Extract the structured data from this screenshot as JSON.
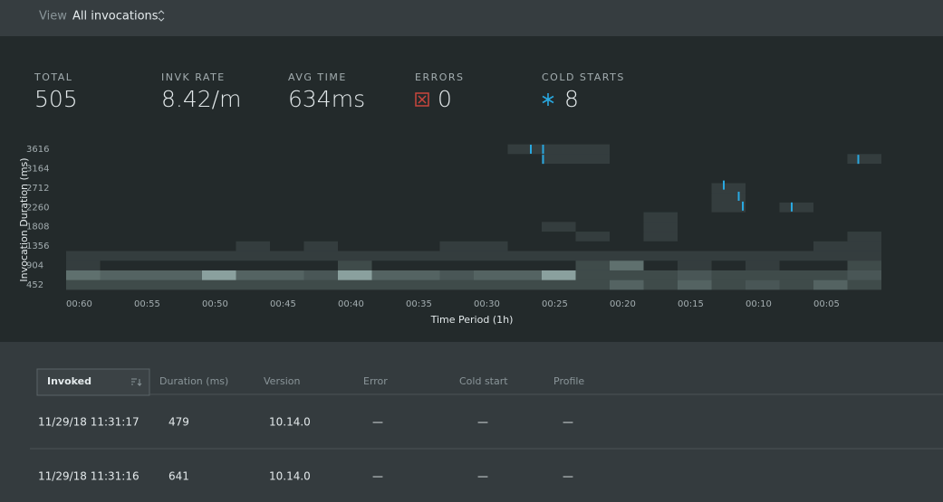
{
  "header": {
    "view_label": "View",
    "view_value": "All invocations"
  },
  "stats": [
    {
      "label": "TOTAL",
      "value": "505"
    },
    {
      "label": "INVK RATE",
      "value": "8.42/m"
    },
    {
      "label": "AVG TIME",
      "value": "634ms"
    },
    {
      "label": "ERRORS",
      "value": "0"
    },
    {
      "label": "COLD STARTS",
      "value": "8"
    }
  ],
  "chart_data": {
    "type": "heatmap",
    "xlabel": "Time Period (1h)",
    "ylabel": "Invocation Duration (ms)",
    "xlim": [
      60,
      0
    ],
    "ylim": [
      339,
      3729
    ],
    "xticks": [
      {
        "value": 60,
        "label": "00:60"
      },
      {
        "value": 55,
        "label": "00:55"
      },
      {
        "value": 50,
        "label": "00:50"
      },
      {
        "value": 45,
        "label": "00:45"
      },
      {
        "value": 40,
        "label": "00:40"
      },
      {
        "value": 35,
        "label": "00:35"
      },
      {
        "value": 30,
        "label": "00:30"
      },
      {
        "value": 25,
        "label": "00:25"
      },
      {
        "value": 20,
        "label": "00:20"
      },
      {
        "value": 15,
        "label": "00:15"
      },
      {
        "value": 10,
        "label": "00:10"
      },
      {
        "value": 5,
        "label": "00:05"
      }
    ],
    "yticks": [
      452,
      904,
      1356,
      1808,
      2260,
      2712,
      3164,
      3616
    ],
    "xbins": [
      60,
      57.5,
      55,
      52.5,
      50,
      47.5,
      45,
      42.5,
      40,
      37.5,
      35,
      32.5,
      30,
      27.5,
      25,
      22.5,
      20,
      17.5,
      15,
      12.5,
      10,
      7.5,
      5,
      2.5,
      0
    ],
    "ybins": [
      339,
      565,
      791,
      1017,
      1243,
      1469,
      1695,
      1921,
      2147,
      2373,
      2599,
      2825,
      3051,
      3277,
      3503,
      3729
    ],
    "color": "#a9c5c0",
    "values": [
      [
        2,
        2,
        2,
        2,
        2,
        2,
        2,
        2,
        2,
        2,
        2,
        2,
        2,
        2,
        2,
        2,
        4,
        2,
        4,
        2,
        3,
        2,
        4,
        2
      ],
      [
        5,
        4,
        4,
        4,
        9,
        4,
        4,
        3,
        9,
        4,
        4,
        3,
        4,
        4,
        9,
        2,
        2,
        2,
        3,
        2,
        2,
        2,
        2,
        3
      ],
      [
        1,
        0,
        0,
        0,
        0,
        0,
        0,
        0,
        2,
        0,
        0,
        0,
        0,
        0,
        0,
        2,
        5,
        0,
        1,
        0,
        1,
        0,
        0,
        2
      ],
      [
        1,
        1,
        1,
        1,
        1,
        1,
        1,
        1,
        1,
        1,
        1,
        1,
        1,
        1,
        1,
        1,
        1,
        1,
        1,
        1,
        1,
        1,
        1,
        1
      ],
      [
        0,
        0,
        0,
        0,
        0,
        1,
        0,
        1,
        0,
        0,
        0,
        1,
        1,
        0,
        0,
        0,
        0,
        0,
        0,
        0,
        0,
        0,
        1,
        1
      ],
      [
        0,
        0,
        0,
        0,
        0,
        0,
        0,
        0,
        0,
        0,
        0,
        0,
        0,
        0,
        0,
        1,
        0,
        1,
        0,
        0,
        0,
        0,
        0,
        1
      ],
      [
        0,
        0,
        0,
        0,
        0,
        0,
        0,
        0,
        0,
        0,
        0,
        0,
        0,
        0,
        1,
        0,
        0,
        1,
        0,
        0,
        0,
        0,
        0,
        0
      ],
      [
        0,
        0,
        0,
        0,
        0,
        0,
        0,
        0,
        0,
        0,
        0,
        0,
        0,
        0,
        0,
        0,
        0,
        1,
        0,
        0,
        0,
        0,
        0,
        0
      ],
      [
        0,
        0,
        0,
        0,
        0,
        0,
        0,
        0,
        0,
        0,
        0,
        0,
        0,
        0,
        0,
        0,
        0,
        0,
        0,
        1,
        0,
        1,
        0,
        0
      ],
      [
        0,
        0,
        0,
        0,
        0,
        0,
        0,
        0,
        0,
        0,
        0,
        0,
        0,
        0,
        0,
        0,
        0,
        0,
        0,
        1,
        0,
        0,
        0,
        0
      ],
      [
        0,
        0,
        0,
        0,
        0,
        0,
        0,
        0,
        0,
        0,
        0,
        0,
        0,
        0,
        0,
        0,
        0,
        0,
        0,
        1,
        0,
        0,
        0,
        0
      ],
      [
        0,
        0,
        0,
        0,
        0,
        0,
        0,
        0,
        0,
        0,
        0,
        0,
        0,
        0,
        0,
        0,
        0,
        0,
        0,
        0,
        0,
        0,
        0,
        0
      ],
      [
        0,
        0,
        0,
        0,
        0,
        0,
        0,
        0,
        0,
        0,
        0,
        0,
        0,
        0,
        0,
        0,
        0,
        0,
        0,
        0,
        0,
        0,
        0,
        0
      ],
      [
        0,
        0,
        0,
        0,
        0,
        0,
        0,
        0,
        0,
        0,
        0,
        0,
        0,
        0,
        1,
        1,
        0,
        0,
        0,
        0,
        0,
        0,
        0,
        1
      ],
      [
        0,
        0,
        0,
        0,
        0,
        0,
        0,
        0,
        0,
        0,
        0,
        0,
        0,
        1,
        1,
        1,
        0,
        0,
        0,
        0,
        0,
        0,
        0,
        0
      ]
    ],
    "cold_starts": {
      "color": "#29a8e0",
      "x": [
        25.8,
        24.9,
        24.9,
        11.6,
        10.5,
        10.2,
        6.6,
        1.7
      ],
      "y": [
        3616,
        3616,
        3380,
        2780,
        2520,
        2290,
        2270,
        3380
      ]
    }
  },
  "table": {
    "headers": [
      "Invoked",
      "Duration (ms)",
      "Version",
      "Error",
      "Cold start",
      "Profile"
    ],
    "rows": [
      [
        "11/29/18 11:31:17",
        "479",
        "10.14.0",
        "—",
        "—",
        "—"
      ],
      [
        "11/29/18 11:31:16",
        "641",
        "10.14.0",
        "—",
        "—",
        "—"
      ]
    ]
  }
}
